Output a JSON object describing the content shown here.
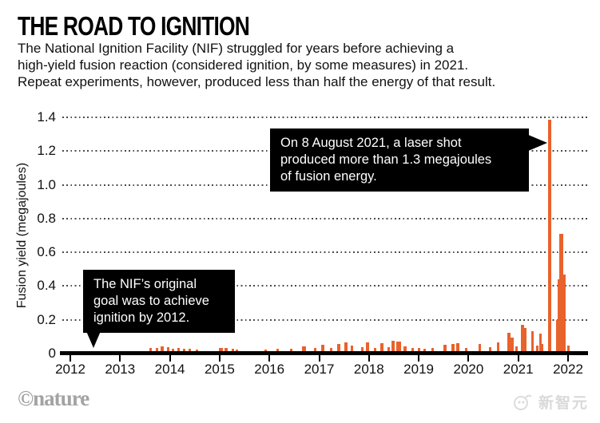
{
  "header": {
    "title": "THE ROAD TO IGNITION",
    "subtitle_lines": [
      "The National Ignition Facility (NIF) struggled for years before achieving a",
      "high-yield fusion reaction (considered ignition, by some measures) in 2021.",
      "Repeat experiments, however, produced less than half the energy of that result."
    ]
  },
  "chart_data": {
    "type": "bar",
    "title": "THE ROAD TO IGNITION",
    "xlabel": "",
    "ylabel": "Fusion yield (megajoules)",
    "x_ticks": [
      "2012",
      "2013",
      "2014",
      "2015",
      "2016",
      "2017",
      "2018",
      "2019",
      "2020",
      "2021",
      "2022"
    ],
    "y_ticks": [
      "0",
      "0.2",
      "0.4",
      "0.6",
      "0.8",
      "1.0",
      "1.2",
      "1.4"
    ],
    "xlim": [
      2012,
      2022.4
    ],
    "ylim": [
      0,
      1.4
    ],
    "grid": "horizontal dotted",
    "legend": "none",
    "bar_color": "#e8622c",
    "bars_format": "[year_decimal, fusion_yield_megajoules, optional_bar_width_px]",
    "bars": [
      [
        2013.62,
        0.024
      ],
      [
        2013.74,
        0.024
      ],
      [
        2013.85,
        0.031,
        4
      ],
      [
        2013.96,
        0.028
      ],
      [
        2014.07,
        0.017
      ],
      [
        2014.17,
        0.022
      ],
      [
        2014.28,
        0.017
      ],
      [
        2014.4,
        0.017
      ],
      [
        2014.55,
        0.013
      ],
      [
        2015.03,
        0.026,
        5
      ],
      [
        2015.13,
        0.026,
        4
      ],
      [
        2015.26,
        0.017
      ],
      [
        2015.35,
        0.013
      ],
      [
        2015.92,
        0.014
      ],
      [
        2016.16,
        0.018
      ],
      [
        2016.44,
        0.02
      ],
      [
        2016.7,
        0.033,
        5
      ],
      [
        2016.92,
        0.022
      ],
      [
        2017.08,
        0.042,
        4
      ],
      [
        2017.24,
        0.024
      ],
      [
        2017.4,
        0.047,
        4
      ],
      [
        2017.54,
        0.056,
        4
      ],
      [
        2017.66,
        0.038
      ],
      [
        2017.87,
        0.028
      ],
      [
        2017.97,
        0.056,
        4
      ],
      [
        2018.12,
        0.025
      ],
      [
        2018.26,
        0.05,
        4
      ],
      [
        2018.4,
        0.03
      ],
      [
        2018.49,
        0.066,
        4
      ],
      [
        2018.6,
        0.06,
        6
      ],
      [
        2018.73,
        0.035,
        4
      ],
      [
        2018.88,
        0.022
      ],
      [
        2019.01,
        0.022
      ],
      [
        2019.12,
        0.017
      ],
      [
        2019.28,
        0.025
      ],
      [
        2019.53,
        0.042,
        4
      ],
      [
        2019.69,
        0.046,
        4
      ],
      [
        2019.79,
        0.053,
        4
      ],
      [
        2019.95,
        0.022
      ],
      [
        2020.22,
        0.045
      ],
      [
        2020.44,
        0.028
      ],
      [
        2020.6,
        0.056
      ],
      [
        2020.81,
        0.113,
        4
      ],
      [
        2020.88,
        0.085,
        4
      ],
      [
        2020.97,
        0.033
      ],
      [
        2021.08,
        0.16,
        4
      ],
      [
        2021.14,
        0.14,
        4
      ],
      [
        2021.28,
        0.122
      ],
      [
        2021.38,
        0.038
      ],
      [
        2021.44,
        0.108
      ],
      [
        2021.48,
        0.047
      ],
      [
        2021.63,
        1.375,
        4
      ],
      [
        2021.78,
        0.19,
        3
      ],
      [
        2021.82,
        0.43,
        3
      ],
      [
        2021.87,
        0.7,
        5
      ],
      [
        2021.93,
        0.46,
        3
      ],
      [
        2022.0,
        0.04
      ]
    ],
    "annotations": {
      "shot": {
        "lines": [
          "On 8 August 2021, a laser shot",
          "produced more than 1.3 megajoules",
          "of fusion energy."
        ]
      },
      "goal": {
        "lines": [
          "The NIF’s original",
          "goal was to achieve",
          "ignition by 2012."
        ]
      }
    }
  },
  "footer": {
    "source_logo": "©nature",
    "watermark": "新智元"
  }
}
